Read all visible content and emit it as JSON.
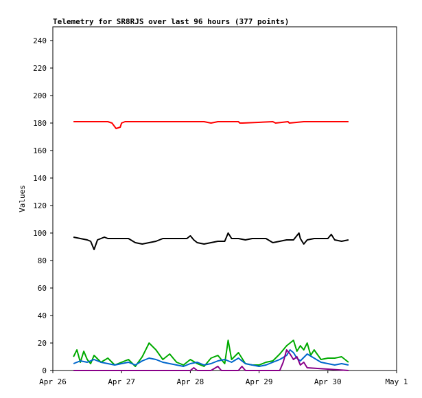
{
  "chart_data": {
    "type": "line",
    "title": "Telemetry for SR8RJS over last 96 hours (377 points)",
    "xlabel": "",
    "ylabel": "Values",
    "ylim": [
      0,
      250
    ],
    "xlim": [
      0,
      5
    ],
    "yticks": [
      0,
      20,
      40,
      60,
      80,
      100,
      120,
      140,
      160,
      180,
      200,
      220,
      240
    ],
    "xticks": [
      {
        "value": 0,
        "label": "Apr 26"
      },
      {
        "value": 1,
        "label": "Apr 27"
      },
      {
        "value": 2,
        "label": "Apr 28"
      },
      {
        "value": 3,
        "label": "Apr 29"
      },
      {
        "value": 4,
        "label": "Apr 30"
      },
      {
        "value": 5,
        "label": "May 1"
      }
    ],
    "x_units": "days since Apr 26 00:00",
    "grid": false,
    "legend": "none",
    "series": [
      {
        "color": "#ff0000",
        "x": [
          0.3,
          0.8,
          0.86,
          0.89,
          0.92,
          0.98,
          1.0,
          1.05,
          1.1,
          1.2,
          1.9,
          1.94,
          2.2,
          2.3,
          2.4,
          2.7,
          2.72,
          2.76,
          3.2,
          3.24,
          3.42,
          3.44,
          3.65,
          4.0,
          4.1,
          4.2,
          4.3
        ],
        "values": [
          181,
          181,
          180,
          178,
          176,
          177,
          180,
          181,
          181,
          181,
          181,
          181,
          181,
          180,
          181,
          181,
          180,
          180,
          181,
          180,
          181,
          180,
          181,
          181,
          181,
          181,
          181
        ]
      },
      {
        "color": "#000000",
        "x": [
          0.3,
          0.4,
          0.5,
          0.55,
          0.6,
          0.65,
          0.7,
          0.75,
          0.8,
          0.9,
          1.0,
          1.1,
          1.2,
          1.3,
          1.4,
          1.5,
          1.6,
          1.7,
          1.8,
          1.95,
          2.0,
          2.05,
          2.1,
          2.2,
          2.3,
          2.4,
          2.5,
          2.55,
          2.6,
          2.7,
          2.8,
          2.9,
          3.0,
          3.1,
          3.2,
          3.3,
          3.4,
          3.5,
          3.58,
          3.6,
          3.65,
          3.7,
          3.8,
          3.9,
          4.0,
          4.05,
          4.1,
          4.2,
          4.3
        ],
        "values": [
          97,
          96,
          95,
          94,
          88,
          95,
          96,
          97,
          96,
          96,
          96,
          96,
          93,
          92,
          93,
          94,
          96,
          96,
          96,
          96,
          98,
          95,
          93,
          92,
          93,
          94,
          94,
          100,
          96,
          96,
          95,
          96,
          96,
          96,
          93,
          94,
          95,
          95,
          100,
          96,
          92,
          95,
          96,
          96,
          96,
          99,
          95,
          94,
          95
        ]
      },
      {
        "color": "#00aa00",
        "x": [
          0.3,
          0.35,
          0.4,
          0.45,
          0.5,
          0.55,
          0.6,
          0.7,
          0.8,
          0.9,
          1.0,
          1.1,
          1.2,
          1.3,
          1.4,
          1.5,
          1.6,
          1.7,
          1.8,
          1.9,
          2.0,
          2.1,
          2.2,
          2.3,
          2.4,
          2.5,
          2.55,
          2.6,
          2.7,
          2.8,
          2.9,
          3.0,
          3.1,
          3.2,
          3.3,
          3.4,
          3.5,
          3.55,
          3.6,
          3.65,
          3.7,
          3.75,
          3.8,
          3.9,
          4.0,
          4.1,
          4.2,
          4.3
        ],
        "values": [
          10,
          15,
          6,
          14,
          8,
          5,
          11,
          6,
          9,
          4,
          6,
          8,
          3,
          10,
          20,
          15,
          8,
          12,
          6,
          4,
          8,
          5,
          3,
          9,
          11,
          5,
          22,
          8,
          13,
          5,
          4,
          4,
          6,
          7,
          12,
          18,
          22,
          14,
          18,
          15,
          20,
          11,
          15,
          8,
          9,
          9,
          10,
          6
        ]
      },
      {
        "color": "#0066cc",
        "x": [
          0.3,
          0.4,
          0.5,
          0.6,
          0.7,
          0.8,
          0.9,
          1.0,
          1.1,
          1.2,
          1.3,
          1.4,
          1.5,
          1.6,
          1.7,
          1.8,
          1.9,
          2.0,
          2.1,
          2.2,
          2.3,
          2.4,
          2.5,
          2.6,
          2.7,
          2.8,
          2.9,
          3.0,
          3.1,
          3.2,
          3.3,
          3.4,
          3.45,
          3.5,
          3.55,
          3.6,
          3.7,
          3.8,
          3.9,
          4.0,
          4.1,
          4.2,
          4.3
        ],
        "values": [
          5,
          7,
          6,
          8,
          6,
          5,
          4,
          5,
          6,
          4,
          7,
          9,
          8,
          6,
          5,
          4,
          3,
          5,
          6,
          4,
          5,
          7,
          8,
          6,
          9,
          5,
          4,
          3,
          4,
          6,
          8,
          11,
          15,
          13,
          9,
          7,
          12,
          9,
          6,
          5,
          4,
          5,
          4
        ]
      },
      {
        "color": "#880088",
        "x": [
          0.3,
          2.0,
          2.05,
          2.1,
          2.3,
          2.4,
          2.45,
          2.5,
          2.7,
          2.75,
          2.8,
          3.3,
          3.35,
          3.4,
          3.45,
          3.5,
          3.55,
          3.6,
          3.65,
          3.7,
          4.3
        ],
        "values": [
          0,
          0,
          2,
          0,
          0,
          3,
          0,
          0,
          0,
          3,
          0,
          0,
          6,
          15,
          12,
          8,
          10,
          4,
          6,
          2,
          0
        ]
      }
    ]
  }
}
